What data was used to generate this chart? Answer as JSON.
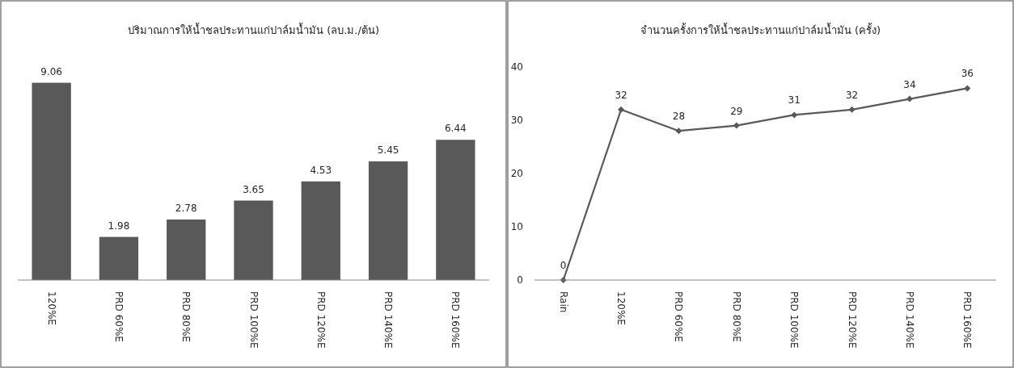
{
  "chart_data": [
    {
      "type": "bar",
      "title": "ปริมาณการให้น้ำชลประทานแก่ปาล์มน้ำมัน (ลบ.ม./ต้น)",
      "categories": [
        "120%E",
        "PRD 60%E",
        "PRD 80%E",
        "PRD 100%E",
        "PRD 120%E",
        "PRD 140%E",
        "PRD 160%E"
      ],
      "values": [
        9.06,
        1.98,
        2.78,
        3.65,
        4.53,
        5.45,
        6.44
      ],
      "color": "#595959",
      "data_labels": true
    },
    {
      "type": "line",
      "title": "จำนวนครั้งการให้น้ำชลประทานแก่ปาล์มน้ำมัน (ครั้ง)",
      "categories": [
        "Rain",
        "120%E",
        "PRD 60%E",
        "PRD 80%E",
        "PRD 100%E",
        "PRD 120%E",
        "PRD 140%E",
        "PRD 160%E"
      ],
      "values": [
        0,
        32,
        28,
        29,
        31,
        32,
        34,
        36
      ],
      "color": "#595959",
      "marker": "diamond",
      "ylim": [
        0,
        40
      ],
      "yticks": [
        0,
        10,
        20,
        30,
        40
      ],
      "data_labels": true
    }
  ]
}
